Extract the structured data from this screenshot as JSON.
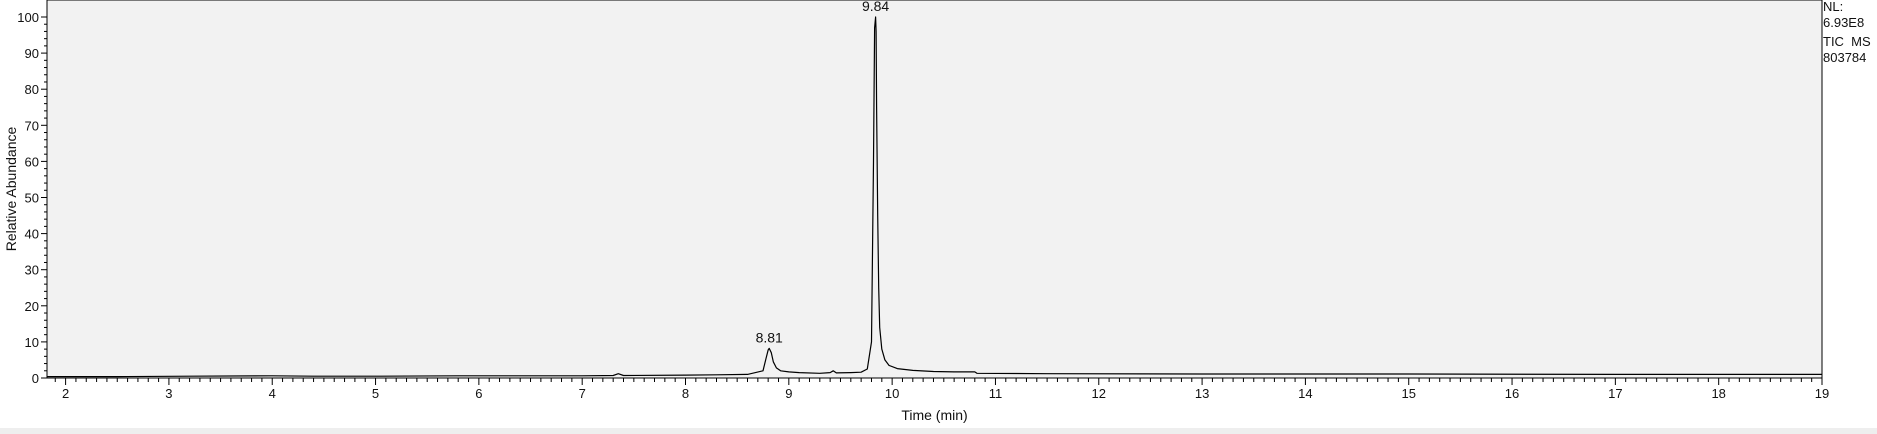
{
  "chart_data": {
    "type": "line",
    "xlabel": "Time (min)",
    "ylabel": "Relative Abundance",
    "xlim": [
      1.82,
      19.0
    ],
    "ylim": [
      0,
      100
    ],
    "x_ticks": [
      2,
      3,
      4,
      5,
      6,
      7,
      8,
      9,
      10,
      11,
      12,
      13,
      14,
      15,
      16,
      17,
      18,
      19
    ],
    "y_ticks": [
      0,
      10,
      20,
      30,
      40,
      50,
      60,
      70,
      80,
      90,
      100
    ],
    "grid": false,
    "series": [
      {
        "line_color": "#000000",
        "x": [
          1.82,
          2.5,
          3.2,
          4.0,
          4.4,
          5.0,
          5.8,
          6.4,
          7.0,
          7.3,
          7.35,
          7.4,
          8.0,
          8.3,
          8.6,
          8.75,
          8.78,
          8.8,
          8.81,
          8.83,
          8.85,
          8.88,
          8.92,
          9.0,
          9.1,
          9.3,
          9.4,
          9.43,
          9.46,
          9.6,
          9.7,
          9.76,
          9.8,
          9.82,
          9.83,
          9.84,
          9.845,
          9.85,
          9.86,
          9.87,
          9.88,
          9.9,
          9.93,
          9.97,
          10.05,
          10.2,
          10.4,
          10.6,
          10.8,
          10.82,
          11.5,
          13.0,
          15.0,
          17.0,
          19.0
        ],
        "y": [
          0.4,
          0.4,
          0.5,
          0.6,
          0.5,
          0.5,
          0.6,
          0.6,
          0.6,
          0.7,
          1.2,
          0.7,
          0.8,
          0.9,
          1.0,
          2.0,
          5.5,
          7.8,
          8.2,
          7.0,
          4.5,
          2.8,
          2.0,
          1.7,
          1.5,
          1.3,
          1.5,
          2.0,
          1.4,
          1.5,
          1.6,
          2.5,
          10.0,
          60.0,
          97.0,
          100.0,
          96.0,
          75.0,
          45.0,
          25.0,
          14.0,
          8.0,
          5.0,
          3.5,
          2.6,
          2.1,
          1.8,
          1.7,
          1.7,
          1.3,
          1.2,
          1.1,
          1.1,
          1.0,
          1.0
        ]
      }
    ],
    "annotations": [
      {
        "x": 8.81,
        "y": 8.2,
        "text": "8.81"
      },
      {
        "x": 9.84,
        "y": 100,
        "text": "9.84"
      }
    ]
  },
  "info": {
    "nl_label": "NL:",
    "nl_value": "6.93E8",
    "scan_label": "TIC  MS",
    "sample_id": "803784"
  },
  "colors": {
    "plot_background": "#f2f2f2",
    "axis": "#000000",
    "trace": "#000000"
  }
}
